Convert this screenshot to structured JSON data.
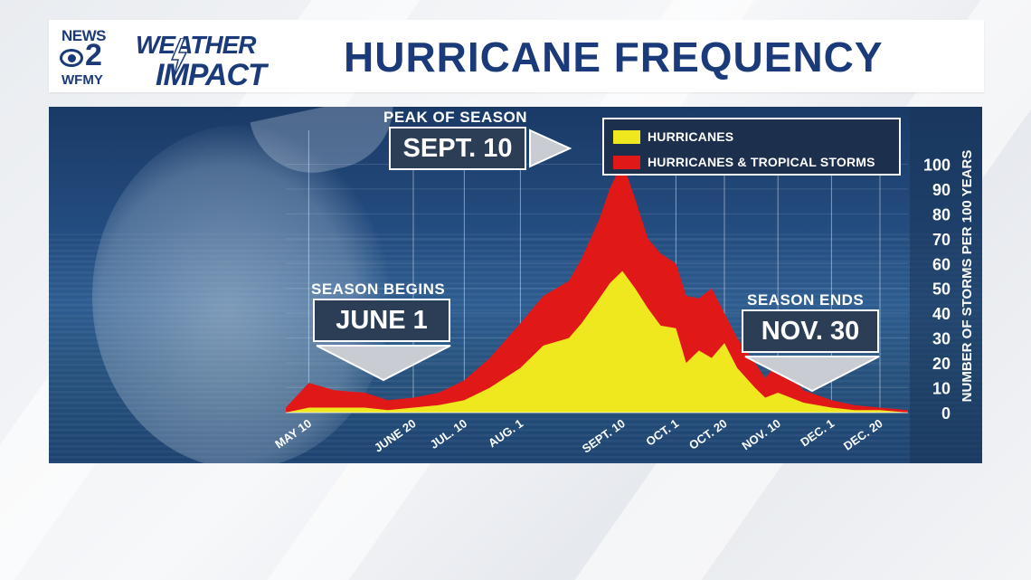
{
  "header": {
    "logo": {
      "news": "NEWS",
      "number": "2",
      "call_sign": "WFMY",
      "weather": "WEATHER",
      "impact": "IMPACT"
    },
    "title": "HURRICANE FREQUENCY"
  },
  "annotations": {
    "peak": {
      "title": "PEAK OF SEASON",
      "label": "SEPT. 10"
    },
    "begin": {
      "title": "SEASON BEGINS",
      "label": "JUNE 1"
    },
    "end": {
      "title": "SEASON ENDS",
      "label": "NOV. 30"
    }
  },
  "colors": {
    "hurricanes": "#f0e81e",
    "tropical": "#e01818",
    "navy": "#1b3a7a"
  },
  "chart_data": {
    "type": "area",
    "ylabel": "NUMBER OF STORMS PER 100 YEARS",
    "ylim": [
      0,
      110
    ],
    "yticks": [
      0,
      10,
      20,
      30,
      40,
      50,
      60,
      70,
      80,
      90,
      100
    ],
    "xlim": [
      "May 1",
      "Dec 31"
    ],
    "xticks": [
      {
        "label": "MAY 10",
        "date": "May 10"
      },
      {
        "label": "JUNE 20",
        "date": "Jun 20"
      },
      {
        "label": "JUL. 10",
        "date": "Jul 10"
      },
      {
        "label": "AUG. 1",
        "date": "Aug 1"
      },
      {
        "label": "SEPT. 10",
        "date": "Sep 10"
      },
      {
        "label": "OCT. 1",
        "date": "Oct 1"
      },
      {
        "label": "OCT. 20",
        "date": "Oct 20"
      },
      {
        "label": "NOV. 10",
        "date": "Nov 10"
      },
      {
        "label": "DEC. 1",
        "date": "Dec 1"
      },
      {
        "label": "DEC. 20",
        "date": "Dec 20"
      }
    ],
    "legend": "top-right",
    "series": [
      {
        "name": "HURRICANES & TROPICAL STORMS",
        "x": [
          "May 1",
          "May 10",
          "May 20",
          "Jun 1",
          "Jun 10",
          "Jun 20",
          "Jun 30",
          "Jul 10",
          "Jul 20",
          "Aug 1",
          "Aug 10",
          "Aug 20",
          "Aug 25",
          "Sep 1",
          "Sep 5",
          "Sep 10",
          "Sep 15",
          "Sep 20",
          "Sep 25",
          "Oct 1",
          "Oct 5",
          "Oct 10",
          "Oct 15",
          "Oct 20",
          "Oct 25",
          "Nov 1",
          "Nov 5",
          "Nov 10",
          "Nov 20",
          "Dec 1",
          "Dec 10",
          "Dec 20",
          "Dec 31"
        ],
        "values": [
          2,
          12,
          9,
          8,
          5,
          6,
          8,
          13,
          22,
          36,
          47,
          53,
          62,
          78,
          90,
          101,
          86,
          70,
          64,
          60,
          47,
          46,
          50,
          40,
          30,
          20,
          14,
          20,
          9,
          5,
          3,
          2,
          1
        ]
      },
      {
        "name": "HURRICANES",
        "x": [
          "May 1",
          "May 10",
          "May 20",
          "Jun 1",
          "Jun 10",
          "Jun 20",
          "Jun 30",
          "Jul 10",
          "Jul 20",
          "Aug 1",
          "Aug 10",
          "Aug 20",
          "Aug 25",
          "Sep 1",
          "Sep 5",
          "Sep 10",
          "Sep 15",
          "Sep 20",
          "Sep 25",
          "Oct 1",
          "Oct 5",
          "Oct 10",
          "Oct 15",
          "Oct 20",
          "Oct 25",
          "Nov 1",
          "Nov 5",
          "Nov 10",
          "Nov 20",
          "Dec 1",
          "Dec 10",
          "Dec 20",
          "Dec 31"
        ],
        "values": [
          0,
          2,
          2,
          2,
          1,
          2,
          3,
          5,
          10,
          18,
          27,
          30,
          36,
          46,
          52,
          57,
          50,
          42,
          35,
          34,
          20,
          25,
          22,
          28,
          18,
          10,
          6,
          8,
          4,
          2,
          1,
          1,
          0
        ]
      }
    ]
  }
}
